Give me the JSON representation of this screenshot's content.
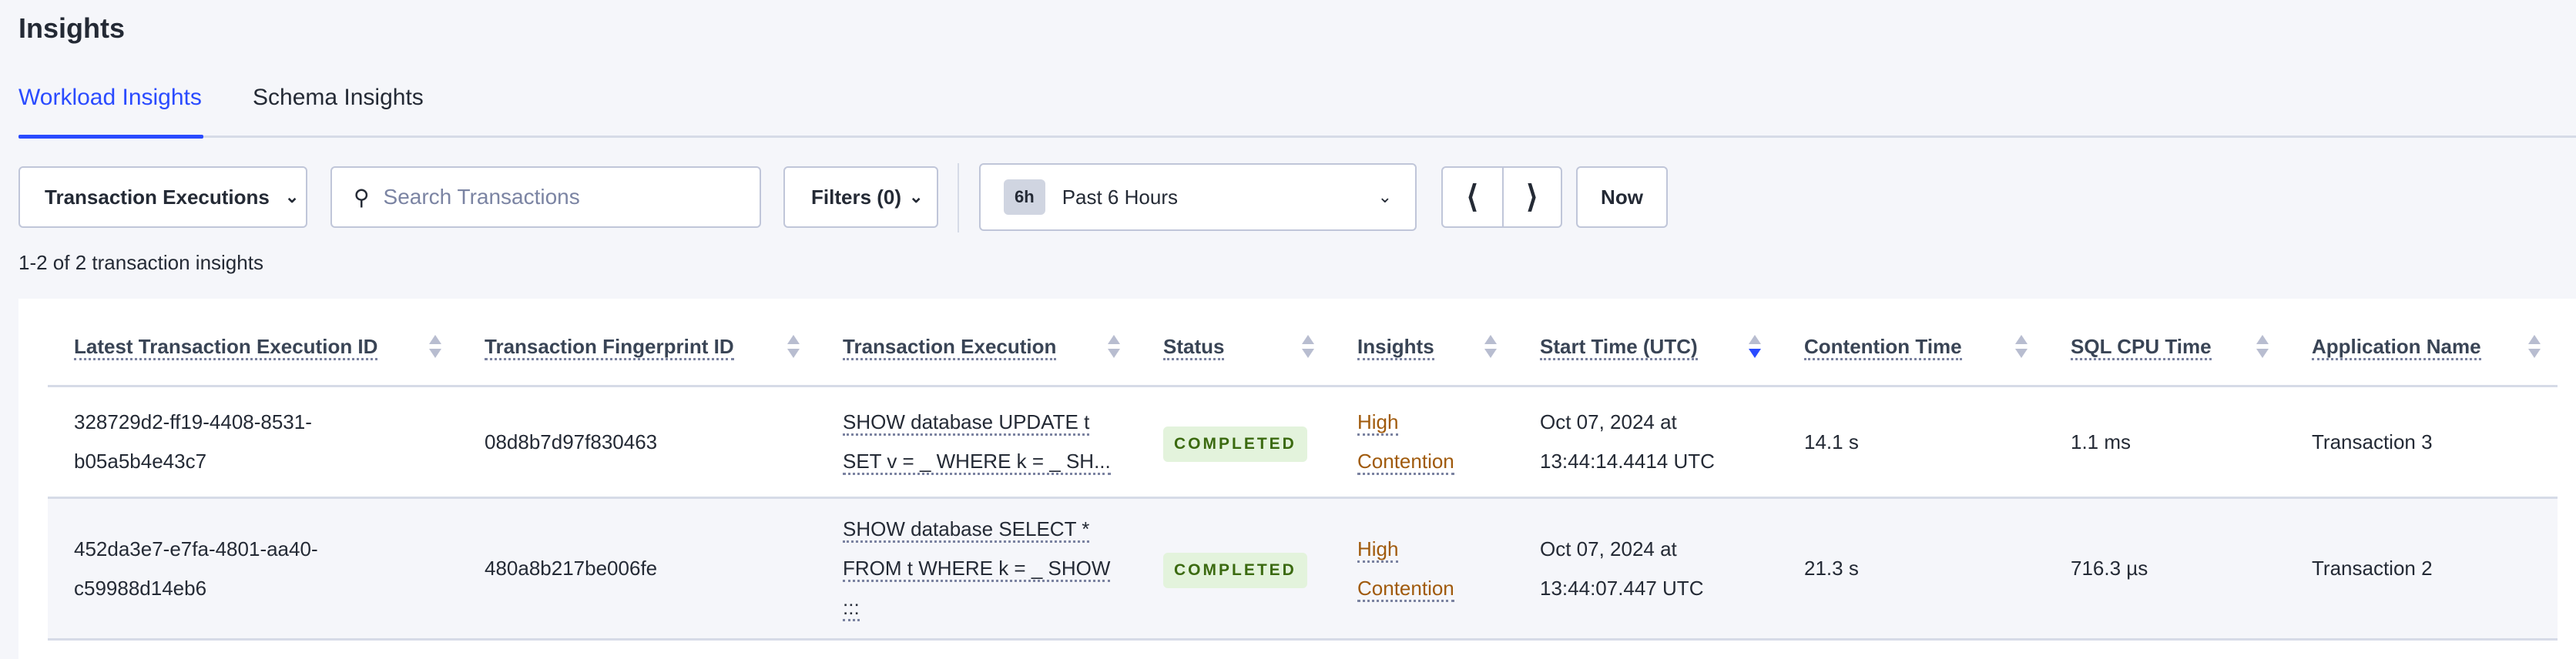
{
  "page": {
    "title": "Insights"
  },
  "tabs": [
    {
      "label": "Workload Insights",
      "active": true
    },
    {
      "label": "Schema Insights",
      "active": false
    }
  ],
  "toolbar": {
    "view_select": "Transaction Executions",
    "search_placeholder": "Search Transactions",
    "filters_label": "Filters (0)",
    "time_badge": "6h",
    "time_range": "Past 6 Hours",
    "prev_icon": "chevron-left",
    "next_icon": "chevron-right",
    "now_label": "Now"
  },
  "results_count": "1-2 of 2 transaction insights",
  "table": {
    "columns": [
      "Latest Transaction Execution ID",
      "Transaction Fingerprint ID",
      "Transaction Execution",
      "Status",
      "Insights",
      "Start Time (UTC)",
      "Contention Time",
      "SQL CPU Time",
      "Application Name"
    ],
    "sorted_column": "Start Time (UTC)",
    "sort_direction": "descending",
    "rows": [
      {
        "exec_id_1": "328729d2-ff19-4408-8531-",
        "exec_id_2": "b05a5b4e43c7",
        "fingerprint": "08d8b7d97f830463",
        "exec_1": "SHOW database UPDATE t",
        "exec_2": "SET v = _ WHERE k = _ SH...",
        "exec_3": "",
        "status": "COMPLETED",
        "insight_1": "High",
        "insight_2": "Contention",
        "start_1": "Oct 07, 2024 at",
        "start_2": "13:44:14.4414 UTC",
        "contention": "14.1 s",
        "cpu": "1.1 ms",
        "app": "Transaction 3"
      },
      {
        "exec_id_1": "452da3e7-e7fa-4801-aa40-",
        "exec_id_2": "c59988d14eb6",
        "fingerprint": "480a8b217be006fe",
        "exec_1": "SHOW database SELECT *",
        "exec_2": "FROM t WHERE k = _ SHOW",
        "exec_3": ":::",
        "status": "COMPLETED",
        "insight_1": "High",
        "insight_2": "Contention",
        "start_1": "Oct 07, 2024 at",
        "start_2": "13:44:07.447 UTC",
        "contention": "21.3 s",
        "cpu": "716.3 µs",
        "app": "Transaction 2"
      }
    ]
  },
  "colors": {
    "accent": "#2a4bff",
    "completed_bg": "#e3f3dc",
    "completed_text": "#3b6a10",
    "insight": "#a05a0c"
  }
}
